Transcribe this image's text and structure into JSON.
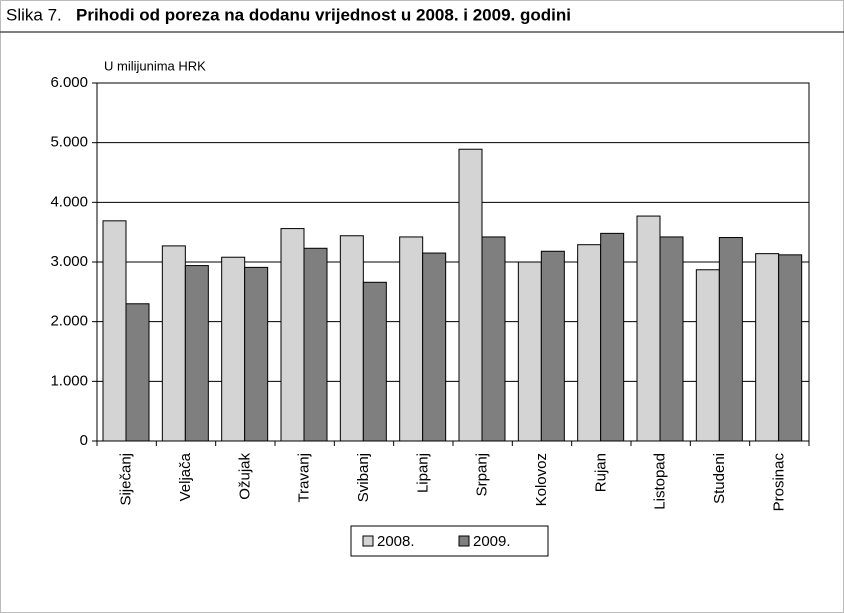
{
  "chart_data": {
    "type": "bar",
    "figure_label": "Slika 7.",
    "title": "Prihodi od poreza na dodanu vrijednost u 2008. i 2009. godini",
    "y_axis_label": "U milijunima HRK",
    "categories": [
      "Siječanj",
      "Veljača",
      "Ožujak",
      "Travanj",
      "Svibanj",
      "Lipanj",
      "Srpanj",
      "Kolovoz",
      "Rujan",
      "Listopad",
      "Studeni",
      "Prosinac"
    ],
    "series": [
      {
        "name": "2008.",
        "color": "#d4d4d4",
        "values": [
          3690,
          3270,
          3080,
          3560,
          3440,
          3420,
          4890,
          3000,
          3290,
          3770,
          2870,
          3140
        ]
      },
      {
        "name": "2009.",
        "color": "#7f7f7f",
        "values": [
          2300,
          2940,
          2910,
          3230,
          2660,
          3150,
          3420,
          3180,
          3480,
          3420,
          3410,
          3120
        ]
      }
    ],
    "ylim": [
      0,
      6000
    ],
    "yticks": [
      0,
      {
        "value": 1000,
        "label": "1.000"
      },
      {
        "value": 2000,
        "label": "2.000"
      },
      {
        "value": 3000,
        "label": "3.000"
      },
      {
        "value": 4000,
        "label": "4.000"
      },
      {
        "value": 5000,
        "label": "5.000"
      },
      {
        "value": 6000,
        "label": "6.000"
      }
    ],
    "grid": true,
    "legend": "bottom"
  }
}
